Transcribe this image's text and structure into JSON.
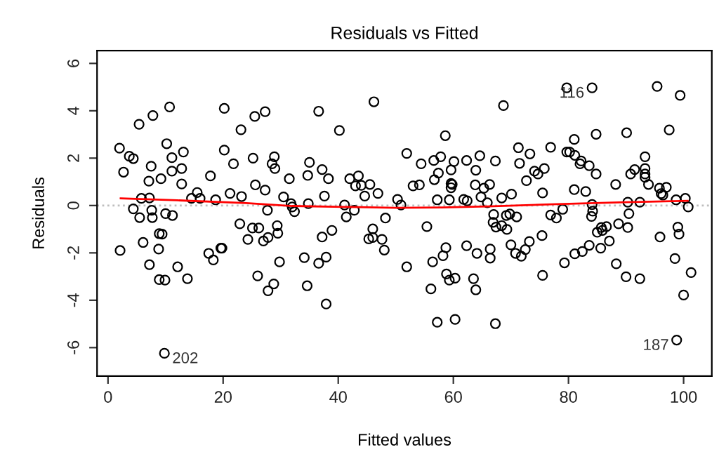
{
  "chart_data": {
    "type": "scatter",
    "title": "Residuals vs Fitted",
    "xlabel": "Fitted values",
    "ylabel": "Residuals",
    "xlim": [
      -1.9,
      104.9
    ],
    "ylim": [
      -7.2,
      6.54
    ],
    "xticks": [
      0,
      20,
      40,
      60,
      80,
      100
    ],
    "yticks": [
      -6,
      -4,
      -2,
      0,
      2,
      4,
      6
    ],
    "grid": false,
    "series": [
      {
        "marker": "circle",
        "color": "#000000",
        "x": [
          10.7,
          7.8,
          5.4,
          20.2,
          23.1,
          2.0,
          3.7,
          4.4,
          10.2,
          13.1,
          2.7,
          7.5,
          11.1,
          12.8,
          20.2,
          21.8,
          7.1,
          9.2,
          11.1,
          12.8,
          17.8,
          15.5,
          14.5,
          16.0,
          18.7,
          21.2,
          23.2,
          5.8,
          7.2,
          4.4,
          5.5,
          7.6,
          7.7,
          10.0,
          11.2,
          8.9,
          9.4,
          22.9,
          2.1,
          6.1,
          8.8,
          17.5,
          18.3,
          19.6,
          19.8,
          7.2,
          12.1,
          8.9,
          9.9,
          13.8,
          9.8,
          25.5,
          27.3,
          36.6,
          46.2,
          40.2,
          25.2,
          28.9,
          28.5,
          29.0,
          35.0,
          37.2,
          31.5,
          34.7,
          38.3,
          42.0,
          43.5,
          43.0,
          44.0,
          45.5,
          25.6,
          27.3,
          30.5,
          37.6,
          44.6,
          46.9,
          31.8,
          32.0,
          32.4,
          34.8,
          41.1,
          42.8,
          41.4,
          27.7,
          48.2,
          25.1,
          26.2,
          29.4,
          29.5,
          24.3,
          27.0,
          27.8,
          37.2,
          38.9,
          46.0,
          45.3,
          46.0,
          47.6,
          48.0,
          29.8,
          34.1,
          36.6,
          37.9,
          26.0,
          28.8,
          27.8,
          34.6,
          37.9,
          68.7,
          58.6,
          51.9,
          71.3,
          73.3,
          76.9,
          54.4,
          56.6,
          57.8,
          60.1,
          62.3,
          64.6,
          67.3,
          71.5,
          59.6,
          57.4,
          63.9,
          74.1,
          74.7,
          75.8,
          72.7,
          53.0,
          54.1,
          56.7,
          59.6,
          59.6,
          59.8,
          65.3,
          63.8,
          66.3,
          70.1,
          75.5,
          50.3,
          50.9,
          57.2,
          59.3,
          61.8,
          62.4,
          64.8,
          65.9,
          68.4,
          76.9,
          67.0,
          69.2,
          69.8,
          71.0,
          66.9,
          67.4,
          68.4,
          69.3,
          55.4,
          75.4,
          73.2,
          70.0,
          70.8,
          71.8,
          72.5,
          66.4,
          66.4,
          62.3,
          64.1,
          58.7,
          58.2,
          56.4,
          51.9,
          58.8,
          59.3,
          60.3,
          63.5,
          63.9,
          56.1,
          75.5,
          57.2,
          60.3,
          67.3,
          79.7,
          84.1,
          95.4,
          99.4,
          84.8,
          90.1,
          97.5,
          81.0,
          79.7,
          80.2,
          81.1,
          82.2,
          82.0,
          83.6,
          84.8,
          93.3,
          93.3,
          91.5,
          90.8,
          93.3,
          93.3,
          93.9,
          88.2,
          81.0,
          83.0,
          95.8,
          97.0,
          96.1,
          96.4,
          98.7,
          100.3,
          100.8,
          84.1,
          84.2,
          90.3,
          92.4,
          90.5,
          84.0,
          77.9,
          79.0,
          88.7,
          90.3,
          85.7,
          86.6,
          85.0,
          85.9,
          87.1,
          83.6,
          85.6,
          82.4,
          81.1,
          79.3,
          88.3,
          90.0,
          92.4,
          95.9,
          99.0,
          99.2,
          98.5,
          101.3,
          100.0,
          98.8
        ],
        "values": [
          4.16,
          3.8,
          3.43,
          4.1,
          3.2,
          2.42,
          2.08,
          1.98,
          2.61,
          2.26,
          1.41,
          1.66,
          2.02,
          1.56,
          2.34,
          1.76,
          1.03,
          1.13,
          1.45,
          0.91,
          1.25,
          0.55,
          0.3,
          0.3,
          0.24,
          0.51,
          0.38,
          0.3,
          0.32,
          -0.14,
          -0.51,
          -0.2,
          -0.51,
          -0.34,
          -0.42,
          -1.19,
          -1.21,
          -0.77,
          -1.9,
          -1.56,
          -1.84,
          -2.02,
          -2.3,
          -1.8,
          -1.8,
          -2.5,
          -2.59,
          -3.13,
          -3.15,
          -3.09,
          -6.24,
          3.76,
          3.96,
          3.98,
          4.38,
          3.17,
          2.0,
          2.06,
          1.76,
          1.56,
          1.82,
          1.52,
          1.13,
          1.27,
          1.13,
          1.13,
          1.25,
          0.83,
          0.85,
          0.89,
          0.87,
          0.65,
          0.36,
          0.4,
          0.4,
          0.51,
          0.08,
          -0.06,
          -0.26,
          0.08,
          0.02,
          -0.2,
          -0.48,
          -0.2,
          -0.53,
          -0.95,
          -0.95,
          -0.85,
          -1.17,
          -1.43,
          -1.5,
          -1.35,
          -1.33,
          -1.05,
          -0.99,
          -1.41,
          -1.35,
          -1.43,
          -1.88,
          -2.38,
          -2.2,
          -2.44,
          -2.18,
          -2.97,
          -3.31,
          -3.6,
          -3.39,
          -4.16,
          4.22,
          2.95,
          2.2,
          2.44,
          2.18,
          2.46,
          1.76,
          1.9,
          2.06,
          1.86,
          1.9,
          2.1,
          1.88,
          1.78,
          1.5,
          1.37,
          1.49,
          1.45,
          1.33,
          1.56,
          1.05,
          0.83,
          0.87,
          1.09,
          0.93,
          0.75,
          0.89,
          0.73,
          0.87,
          0.89,
          0.48,
          0.53,
          0.26,
          0.02,
          0.24,
          0.24,
          0.26,
          0.2,
          0.36,
          0.12,
          0.32,
          -0.4,
          -0.38,
          -0.42,
          -0.36,
          -0.48,
          -0.71,
          -0.91,
          -0.85,
          -1.01,
          -0.89,
          -1.27,
          -1.52,
          -1.66,
          -2.02,
          -2.14,
          -1.86,
          -1.84,
          -2.22,
          -1.7,
          -2.02,
          -1.78,
          -2.12,
          -2.38,
          -2.59,
          -2.89,
          -3.15,
          -3.07,
          -3.09,
          -3.56,
          -3.52,
          -2.95,
          -4.93,
          -4.81,
          -4.99,
          4.97,
          4.97,
          5.03,
          4.65,
          3.01,
          3.07,
          3.19,
          2.79,
          2.26,
          2.26,
          2.12,
          1.88,
          1.76,
          1.68,
          1.33,
          2.06,
          1.56,
          1.52,
          1.33,
          1.33,
          1.19,
          0.89,
          0.89,
          0.67,
          0.59,
          0.73,
          0.77,
          0.5,
          0.44,
          0.24,
          0.3,
          -0.06,
          0.04,
          -0.24,
          0.14,
          0.14,
          -0.34,
          -0.46,
          -0.53,
          -0.16,
          -0.77,
          -0.93,
          -0.93,
          -0.89,
          -1.13,
          -1.05,
          -1.5,
          -1.68,
          -1.8,
          -1.94,
          -2.04,
          -2.42,
          -2.46,
          -3.01,
          -3.09,
          -1.33,
          -0.91,
          -1.21,
          -2.24,
          -2.83,
          -3.78,
          -5.68
        ]
      },
      {
        "type": "line",
        "color": "#ff0000",
        "line_style": "solid",
        "x": [
          2.2,
          12,
          24,
          32,
          41,
          50,
          58,
          66,
          78,
          90,
          100.7
        ],
        "values": [
          0.3,
          0.22,
          0.1,
          -0.02,
          -0.06,
          -0.1,
          -0.08,
          -0.04,
          0.06,
          0.14,
          0.2
        ]
      }
    ],
    "ref_lines": [
      {
        "axis": "y",
        "value": 0,
        "color": "#bebebe",
        "line_style": "dotted"
      }
    ],
    "annotations": [
      {
        "text": "202",
        "x": 9.8,
        "y": -6.24
      },
      {
        "text": "116",
        "x": 84.1,
        "y": 4.97
      },
      {
        "text": "187",
        "x": 98.8,
        "y": -5.68
      }
    ]
  }
}
